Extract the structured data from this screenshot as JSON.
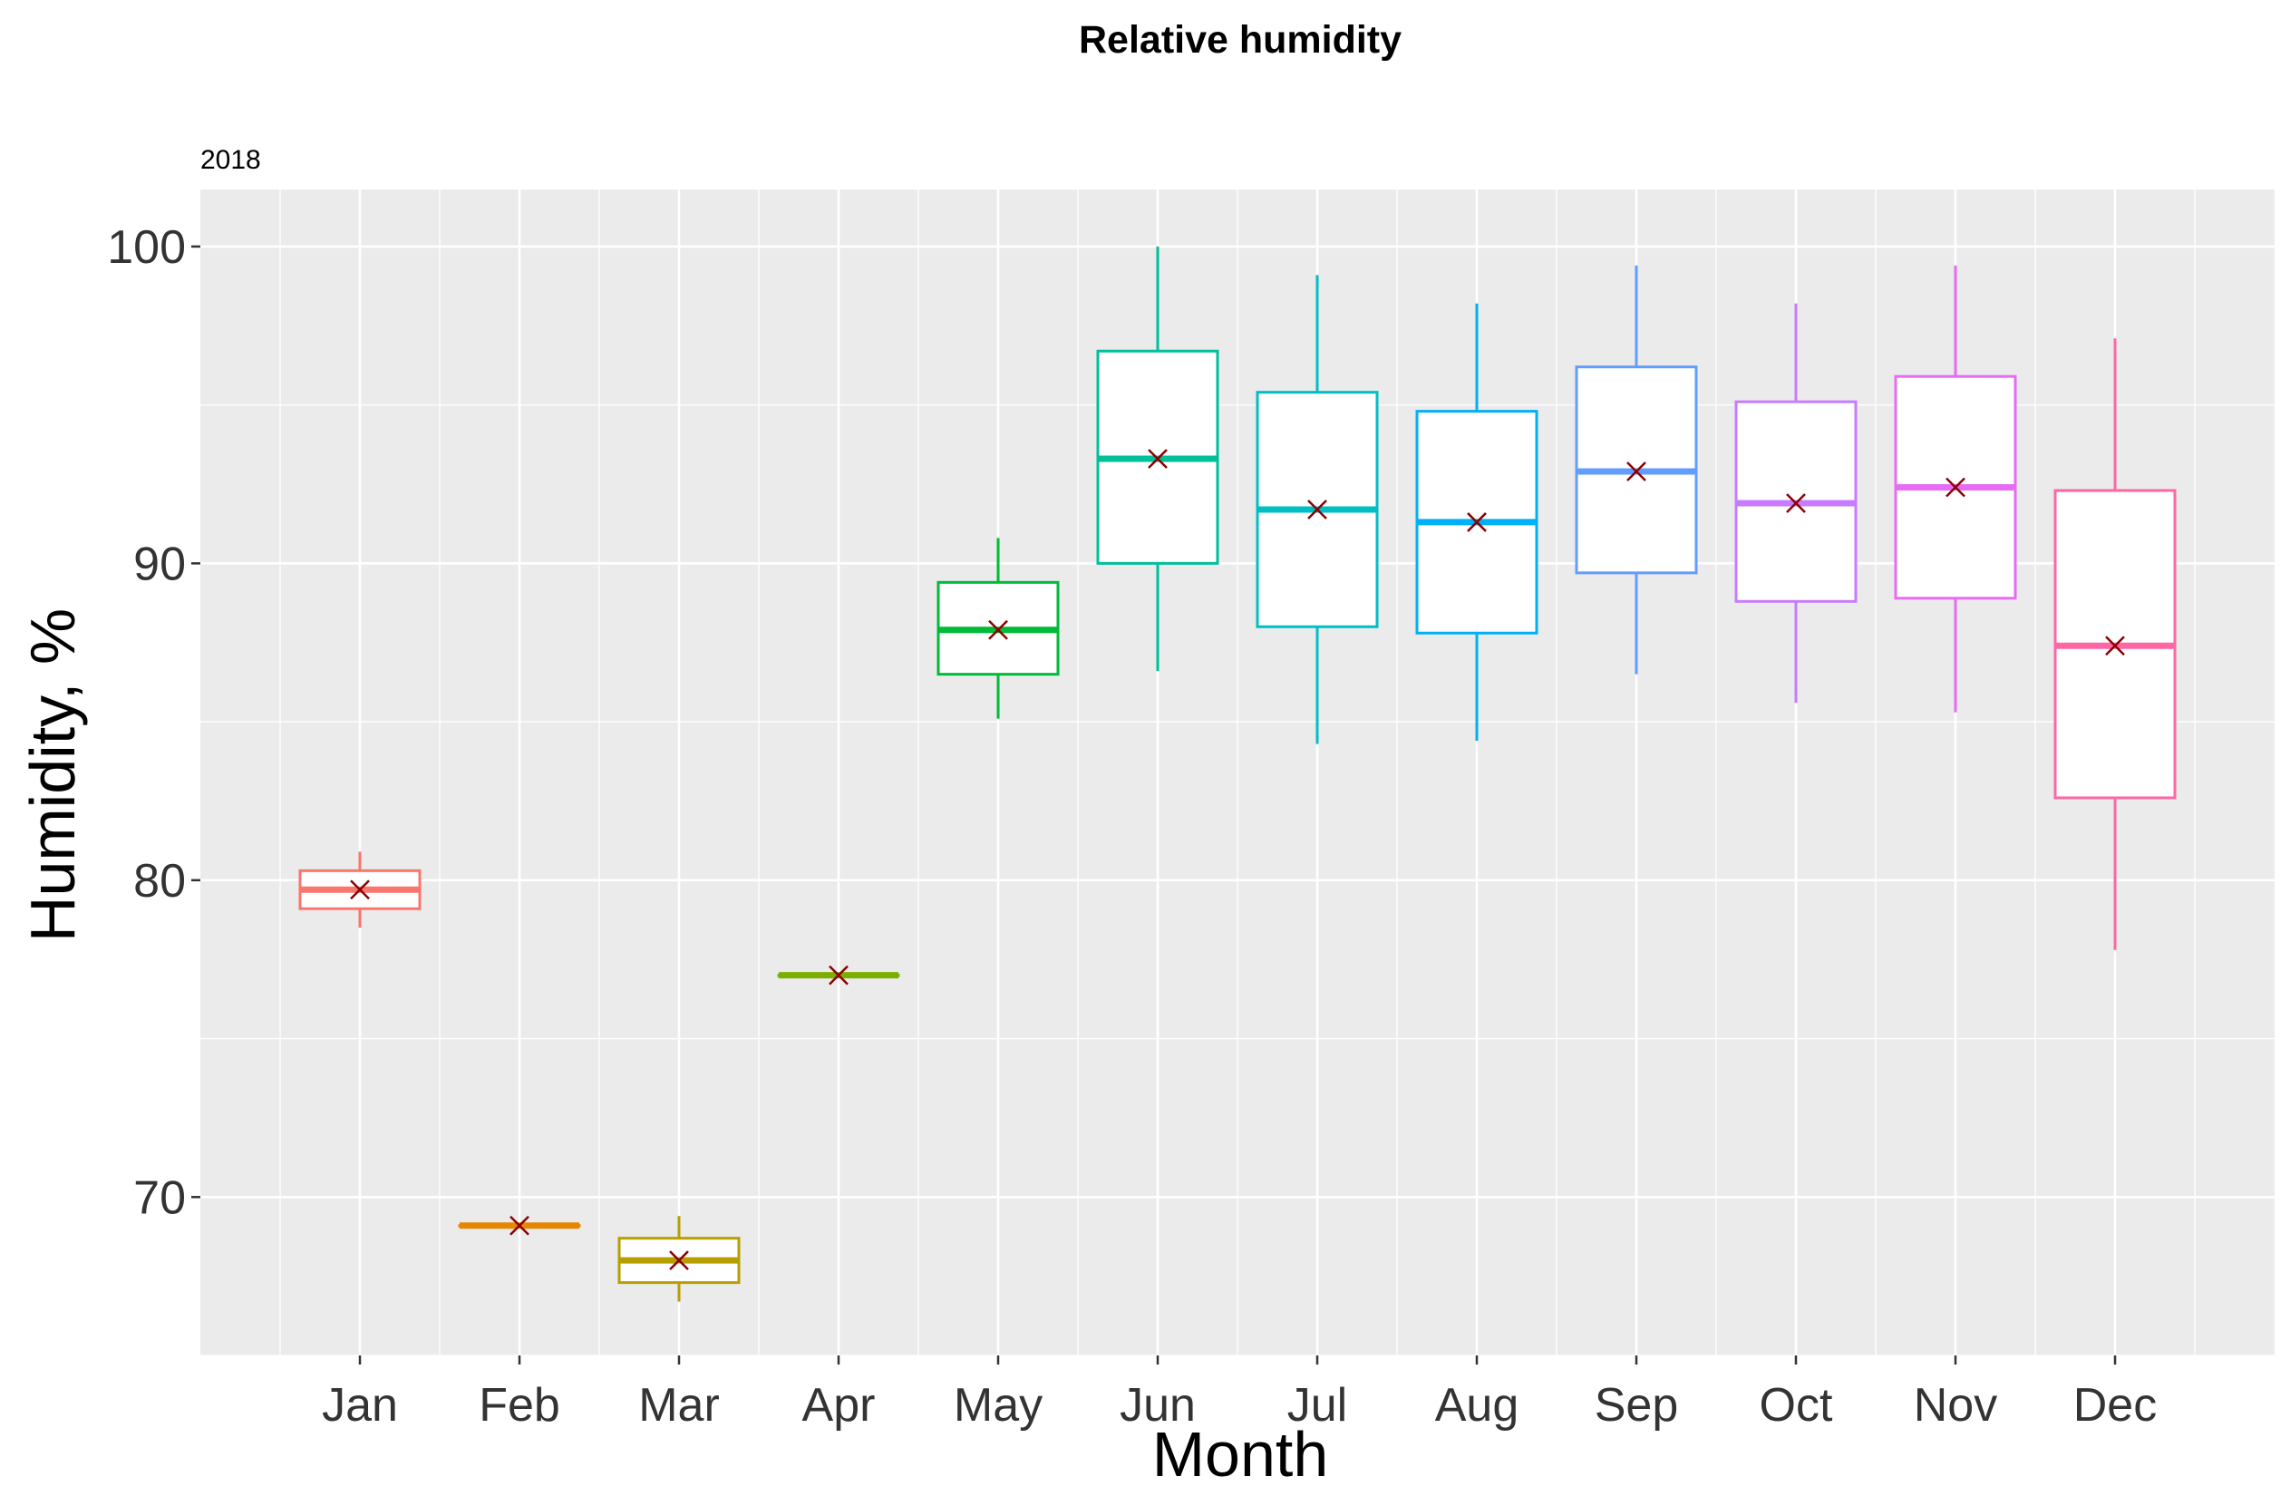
{
  "chart_data": {
    "type": "boxplot",
    "title": "Relative humidity",
    "subtitle": "2018",
    "xlabel": "Month",
    "ylabel": "Humidity, %",
    "ylim": [
      65,
      101.8
    ],
    "yticks": [
      70,
      80,
      90,
      100
    ],
    "grid": true,
    "legend": "none",
    "categories": [
      "Jan",
      "Feb",
      "Mar",
      "Apr",
      "May",
      "Jun",
      "Jul",
      "Aug",
      "Sep",
      "Oct",
      "Nov",
      "Dec"
    ],
    "colors": [
      "#F8766D",
      "#E58700",
      "#B79F00",
      "#7CAE00",
      "#00BA38",
      "#00BF9B",
      "#00BFC4",
      "#00B0F6",
      "#619CFF",
      "#C77CFF",
      "#E76BF3",
      "#FF67A4"
    ],
    "mean_marker_color": "#8B0000",
    "series": [
      {
        "name": "Relative humidity",
        "boxes": [
          {
            "month": "Jan",
            "min": 78.5,
            "q1": 79.1,
            "median": 79.7,
            "q3": 80.3,
            "max": 80.9,
            "mean": 79.7
          },
          {
            "month": "Feb",
            "min": 69.1,
            "q1": 69.1,
            "median": 69.1,
            "q3": 69.1,
            "max": 69.1,
            "mean": 69.1
          },
          {
            "month": "Mar",
            "min": 66.7,
            "q1": 67.3,
            "median": 68.0,
            "q3": 68.7,
            "max": 69.4,
            "mean": 68.0
          },
          {
            "month": "Apr",
            "min": 77.0,
            "q1": 77.0,
            "median": 77.0,
            "q3": 77.0,
            "max": 77.0,
            "mean": 77.0
          },
          {
            "month": "May",
            "min": 85.1,
            "q1": 86.5,
            "median": 87.9,
            "q3": 89.4,
            "max": 90.8,
            "mean": 87.9
          },
          {
            "month": "Jun",
            "min": 86.6,
            "q1": 90.0,
            "median": 93.3,
            "q3": 96.7,
            "max": 100.0,
            "mean": 93.3
          },
          {
            "month": "Jul",
            "min": 84.3,
            "q1": 88.0,
            "median": 91.7,
            "q3": 95.4,
            "max": 99.1,
            "mean": 91.7
          },
          {
            "month": "Aug",
            "min": 84.4,
            "q1": 87.8,
            "median": 91.3,
            "q3": 94.8,
            "max": 98.2,
            "mean": 91.3
          },
          {
            "month": "Sep",
            "min": 86.5,
            "q1": 89.7,
            "median": 92.9,
            "q3": 96.2,
            "max": 99.4,
            "mean": 92.9
          },
          {
            "month": "Oct",
            "min": 85.6,
            "q1": 88.8,
            "median": 91.9,
            "q3": 95.1,
            "max": 98.2,
            "mean": 91.9
          },
          {
            "month": "Nov",
            "min": 85.3,
            "q1": 88.9,
            "median": 92.4,
            "q3": 95.9,
            "max": 99.4,
            "mean": 92.4
          },
          {
            "month": "Dec",
            "min": 77.8,
            "q1": 82.6,
            "median": 87.4,
            "q3": 92.3,
            "max": 97.1,
            "mean": 87.4
          }
        ]
      }
    ]
  }
}
